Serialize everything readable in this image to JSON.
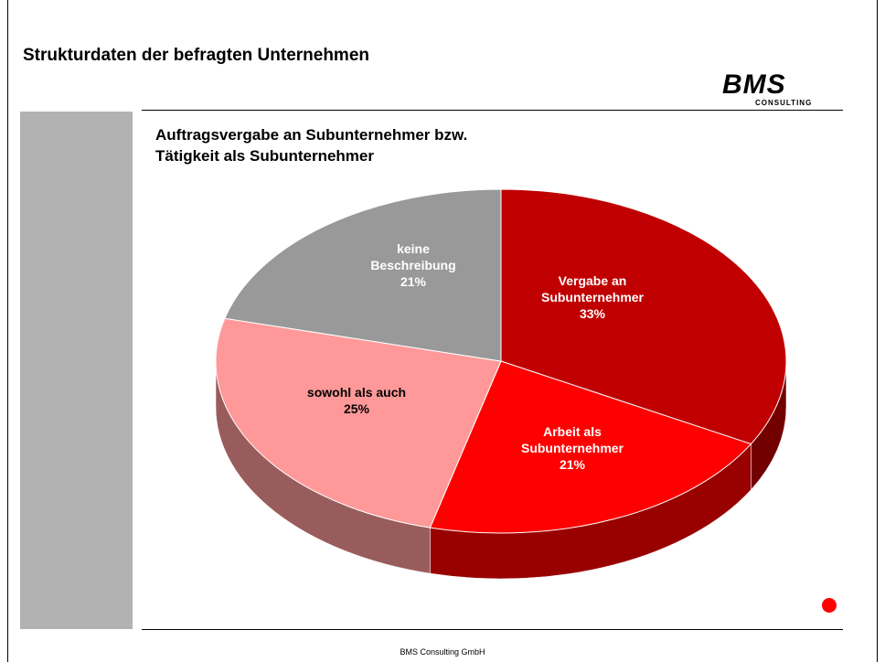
{
  "header": {
    "title": "Strukturdaten der befragten Unternehmen"
  },
  "logo": {
    "name": "BMS",
    "tagline": "CONSULTING"
  },
  "footer": "BMS Consulting GmbH",
  "chart_data": {
    "type": "pie",
    "title": "Auftragsvergabe an Subunternehmer bzw. Tätigkeit als Subunternehmer",
    "categories": [
      "Vergabe an Subunternehmer",
      "Arbeit als Subunternehmer",
      "sowohl als auch",
      "keine Beschreibung"
    ],
    "values": [
      33,
      21,
      25,
      21
    ],
    "value_labels": [
      "33%",
      "21%",
      "25%",
      "21%"
    ],
    "colors": [
      "#c00000",
      "#ff0000",
      "#ff9999",
      "#999999"
    ]
  }
}
